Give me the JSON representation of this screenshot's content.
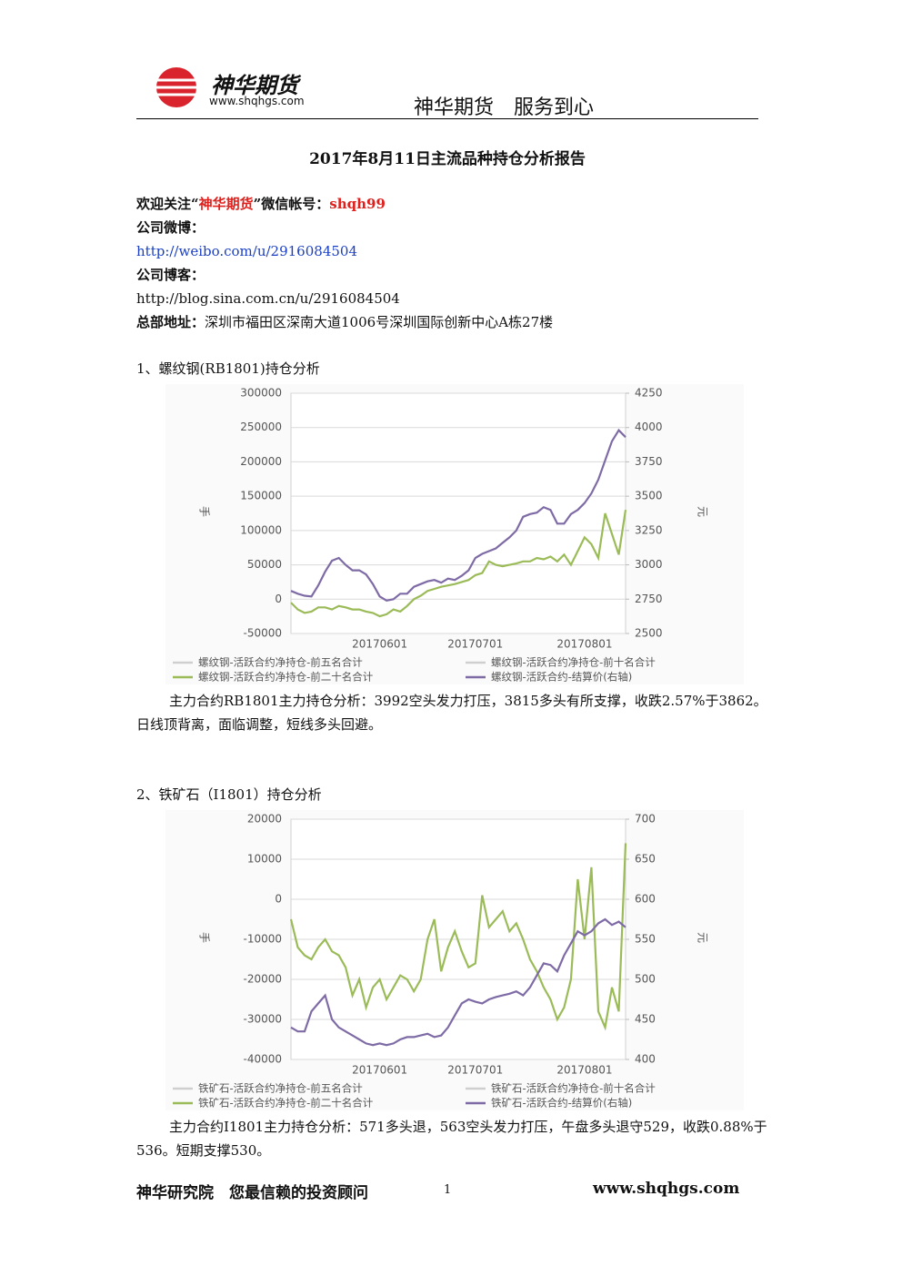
{
  "header": {
    "logo": "神华期货",
    "url": "www.shqhgs.com",
    "slogan": "神华期货　服务到心"
  },
  "title": "2017年8月11日主流品种持仓分析报告",
  "info": {
    "follow_prefix": "欢迎关注“",
    "follow_name": "神华期货",
    "follow_mid": "”微信帐号：",
    "wechat": "shqh99",
    "weibo_label": "公司微博：",
    "weibo_url": "http://weibo.com/u/2916084504",
    "blog_label": "公司博客：",
    "blog_url": "http://blog.sina.com.cn/u/2916084504",
    "address_label": "总部地址：",
    "address": "深圳市福田区深南大道1006号深圳国际创新中心A栋27楼"
  },
  "sections": [
    {
      "heading": "1、螺纹钢(RB1801)持仓分析",
      "chart": {
        "type": "line",
        "y_label": "手",
        "y2_label": "元",
        "ylim": [
          -50000,
          300000
        ],
        "yticks": [
          -50000,
          0,
          50000,
          100000,
          150000,
          200000,
          250000,
          300000
        ],
        "y2lim": [
          2500,
          4250
        ],
        "y2ticks": [
          2500,
          2750,
          3000,
          3250,
          3500,
          3750,
          4000,
          4250
        ],
        "categories": [
          null,
          null,
          null,
          null,
          null,
          null,
          null,
          null,
          null,
          null,
          null,
          null,
          null,
          "20170601",
          null,
          null,
          null,
          null,
          null,
          null,
          null,
          null,
          null,
          null,
          null,
          null,
          null,
          "20170701",
          null,
          null,
          null,
          null,
          null,
          null,
          null,
          null,
          null,
          null,
          null,
          null,
          null,
          null,
          null,
          "20170801",
          null,
          null,
          null,
          null,
          null,
          null
        ],
        "series": [
          {
            "name": "螺纹钢-活跃合约净持仓-前五名合计",
            "color": "#cfcfcf"
          },
          {
            "name": "螺纹钢-活跃合约净持仓-前十名合计",
            "color": "#cfcfcf"
          },
          {
            "name": "螺纹钢-活跃合约净持仓-前二十名合计",
            "color": "#9bbb59",
            "values": [
              -5000,
              -15000,
              -20000,
              -18000,
              -12000,
              -12000,
              -15000,
              -10000,
              -12000,
              -15000,
              -15000,
              -18000,
              -20000,
              -25000,
              -22000,
              -15000,
              -18000,
              -10000,
              0,
              5000,
              12000,
              15000,
              18000,
              20000,
              22000,
              25000,
              28000,
              35000,
              38000,
              55000,
              50000,
              48000,
              50000,
              52000,
              55000,
              55000,
              60000,
              58000,
              62000,
              55000,
              65000,
              50000,
              70000,
              90000,
              80000,
              60000,
              125000,
              95000,
              65000,
              130000
            ]
          },
          {
            "name": "螺纹钢-活跃合约-结算价(右轴)",
            "color": "#7e6ba6",
            "axis": "y2",
            "values": [
              2810,
              2790,
              2775,
              2770,
              2850,
              2950,
              3030,
              3050,
              3000,
              2960,
              2960,
              2930,
              2860,
              2770,
              2740,
              2750,
              2790,
              2790,
              2840,
              2860,
              2880,
              2890,
              2870,
              2900,
              2890,
              2920,
              2960,
              3050,
              3080,
              3100,
              3120,
              3160,
              3200,
              3250,
              3350,
              3370,
              3380,
              3420,
              3400,
              3300,
              3300,
              3370,
              3400,
              3450,
              3520,
              3620,
              3760,
              3900,
              3980,
              3930
            ]
          }
        ]
      },
      "analysis": "主力合约RB1801主力持仓分析：3992空头发力打压，3815多头有所支撑，收跌2.57%于3862。日线顶背离，面临调整，短线多头回避。"
    },
    {
      "heading": "2、铁矿石（I1801）持仓分析",
      "chart": {
        "type": "line",
        "y_label": "手",
        "y2_label": "元",
        "ylim": [
          -40000,
          20000
        ],
        "yticks": [
          -40000,
          -30000,
          -20000,
          -10000,
          0,
          10000,
          20000
        ],
        "y2lim": [
          400,
          700
        ],
        "y2ticks": [
          400,
          450,
          500,
          550,
          600,
          650,
          700
        ],
        "categories": [
          null,
          null,
          null,
          null,
          null,
          null,
          null,
          null,
          null,
          null,
          null,
          null,
          null,
          "20170601",
          null,
          null,
          null,
          null,
          null,
          null,
          null,
          null,
          null,
          null,
          null,
          null,
          null,
          "20170701",
          null,
          null,
          null,
          null,
          null,
          null,
          null,
          null,
          null,
          null,
          null,
          null,
          null,
          null,
          null,
          "20170801",
          null,
          null,
          null,
          null,
          null,
          null
        ],
        "series": [
          {
            "name": "铁矿石-活跃合约净持仓-前五名合计",
            "color": "#cfcfcf"
          },
          {
            "name": "铁矿石-活跃合约净持仓-前十名合计",
            "color": "#cfcfcf"
          },
          {
            "name": "铁矿石-活跃合约净持仓-前二十名合计",
            "color": "#9bbb59",
            "values": [
              -5000,
              -12000,
              -14000,
              -15000,
              -12000,
              -10000,
              -13000,
              -14000,
              -17000,
              -24000,
              -20000,
              -27000,
              -22000,
              -20000,
              -25000,
              -22000,
              -19000,
              -20000,
              -23000,
              -20000,
              -10000,
              -5000,
              -18000,
              -12000,
              -8000,
              -13000,
              -17000,
              -16000,
              1000,
              -7000,
              -5000,
              -3000,
              -8000,
              -6000,
              -10000,
              -15000,
              -18000,
              -22000,
              -25000,
              -30000,
              -27000,
              -20000,
              5000,
              -10000,
              8000,
              -28000,
              -32000,
              -22000,
              -28000,
              14000
            ]
          },
          {
            "name": "铁矿石-活跃合约-结算价(右轴)",
            "color": "#7e6ba6",
            "axis": "y2",
            "values": [
              440,
              435,
              435,
              460,
              470,
              480,
              450,
              440,
              435,
              430,
              425,
              420,
              418,
              420,
              418,
              420,
              425,
              428,
              428,
              430,
              432,
              428,
              430,
              440,
              455,
              470,
              475,
              472,
              470,
              475,
              478,
              480,
              482,
              485,
              480,
              490,
              505,
              520,
              518,
              510,
              530,
              545,
              560,
              555,
              560,
              570,
              575,
              568,
              572,
              565
            ]
          }
        ]
      },
      "analysis": "主力合约I1801主力持仓分析：571多头退，563空头发力打压，午盘多头退守529，收跌0.88%于536。短期支撑530。"
    }
  ],
  "footer": {
    "left": "神华研究院　您最信赖的投资顾问",
    "page": "1",
    "url": "www.shqhgs.com"
  }
}
